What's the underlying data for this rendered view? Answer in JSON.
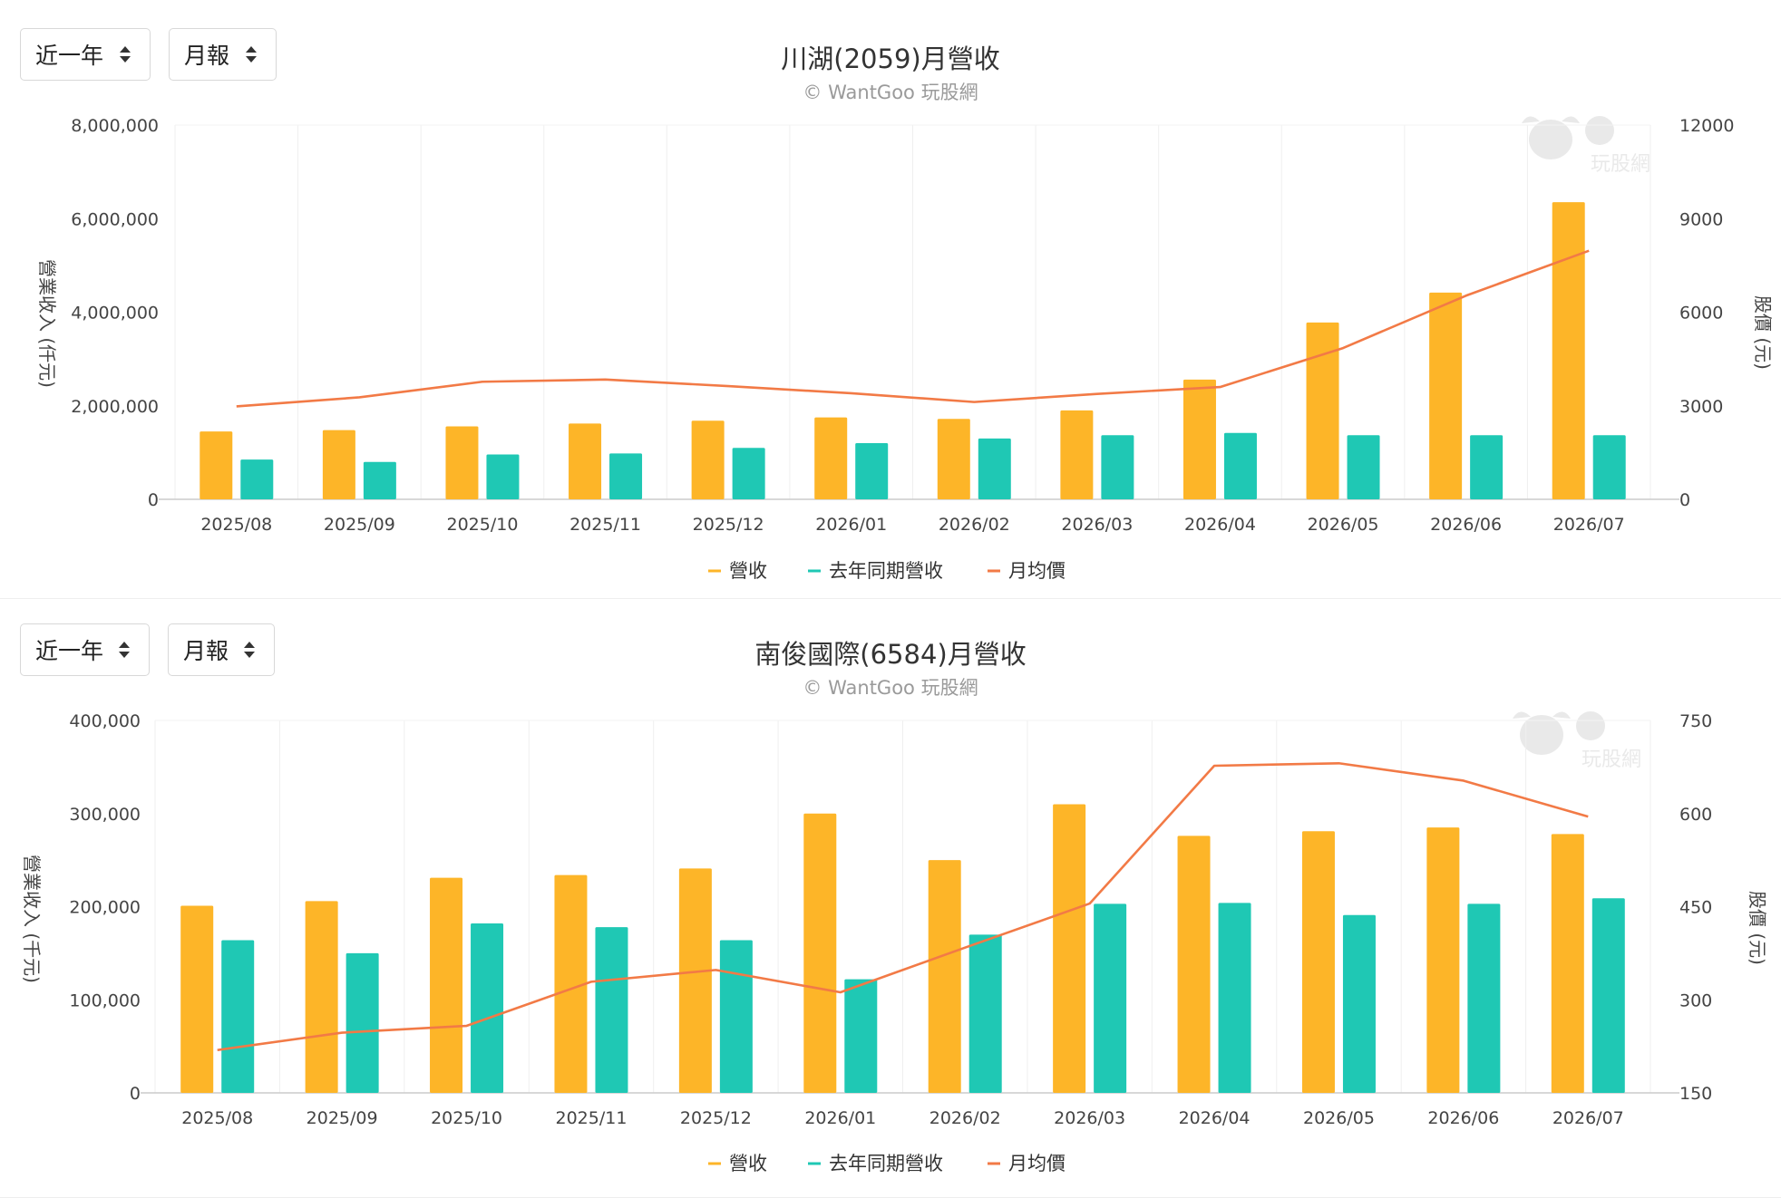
{
  "panels": [
    {
      "period_label": "近一年",
      "type_label": "月報",
      "title": "川湖(2059)月營收",
      "subtitle": "© WantGoo 玩股網",
      "watermark": "玩股網",
      "chart_data": {
        "type": "bar",
        "categories": [
          "2025/08",
          "2025/09",
          "2025/10",
          "2025/11",
          "2025/12",
          "2026/01",
          "2026/02",
          "2026/03",
          "2026/04",
          "2026/05",
          "2026/06",
          "2026/07"
        ],
        "series": [
          {
            "name": "營收",
            "type": "bar",
            "color": "#FDB528",
            "values": [
              1450000,
              1480000,
              1560000,
              1620000,
              1680000,
              1750000,
              1720000,
              1900000,
              2560000,
              3780000,
              4420000,
              6350000
            ]
          },
          {
            "name": "去年同期營收",
            "type": "bar",
            "color": "#1FC8B4",
            "values": [
              850000,
              800000,
              960000,
              980000,
              1100000,
              1200000,
              1300000,
              1370000,
              1420000,
              1370000,
              1370000,
              1370000
            ]
          },
          {
            "name": "月均價",
            "type": "line",
            "axis": "right",
            "color": "#F27A46",
            "values": [
              2980,
              3270,
              3770,
              3840,
              3630,
              3400,
              3120,
              3380,
              3600,
              4850,
              6530,
              7970
            ]
          }
        ],
        "ylabel": "營業收入 (仟元)",
        "y2label": "股價 (元)",
        "ylim": [
          0,
          8000000
        ],
        "yticks": [
          0,
          2000000,
          4000000,
          6000000,
          8000000
        ],
        "ytick_labels": [
          "0",
          "2,000,000",
          "4,000,000",
          "6,000,000",
          "8,000,000"
        ],
        "y2lim": [
          0,
          12000
        ],
        "y2ticks": [
          0,
          3000,
          6000,
          9000,
          12000
        ],
        "y2tick_labels": [
          "0",
          "3000",
          "6000",
          "9000",
          "12000"
        ],
        "grid": "vertical",
        "legend": "bottom-center"
      }
    },
    {
      "period_label": "近一年",
      "type_label": "月報",
      "title": "南俊國際(6584)月營收",
      "subtitle": "© WantGoo 玩股網",
      "watermark": "玩股網",
      "chart_data": {
        "type": "bar",
        "categories": [
          "2025/08",
          "2025/09",
          "2025/10",
          "2025/11",
          "2025/12",
          "2026/01",
          "2026/02",
          "2026/03",
          "2026/04",
          "2026/05",
          "2026/06",
          "2026/07"
        ],
        "series": [
          {
            "name": "營收",
            "type": "bar",
            "color": "#FDB528",
            "values": [
              201000,
              206000,
              231000,
              234000,
              241000,
              300000,
              250000,
              310000,
              276000,
              281000,
              285000,
              278000
            ]
          },
          {
            "name": "去年同期營收",
            "type": "bar",
            "color": "#1FC8B4",
            "values": [
              164000,
              150000,
              182000,
              178000,
              164000,
              122000,
              170000,
              203000,
              204000,
              191000,
              203000,
              209000
            ]
          },
          {
            "name": "月均價",
            "type": "line",
            "axis": "right",
            "color": "#F27A46",
            "values": [
              219,
              247,
              258,
              329,
              348,
              312,
              384,
              455,
              677,
              681,
              653,
              595
            ]
          }
        ],
        "ylabel": "營業收入 (千元)",
        "y2label": "股價 (元)",
        "ylim": [
          0,
          400000
        ],
        "yticks": [
          0,
          100000,
          200000,
          300000,
          400000
        ],
        "ytick_labels": [
          "0",
          "100,000",
          "200,000",
          "300,000",
          "400,000"
        ],
        "y2lim": [
          150,
          750
        ],
        "y2ticks": [
          150,
          300,
          450,
          600,
          750
        ],
        "y2tick_labels": [
          "150",
          "300",
          "450",
          "600",
          "750"
        ],
        "grid": "vertical",
        "legend": "bottom-center"
      }
    }
  ]
}
